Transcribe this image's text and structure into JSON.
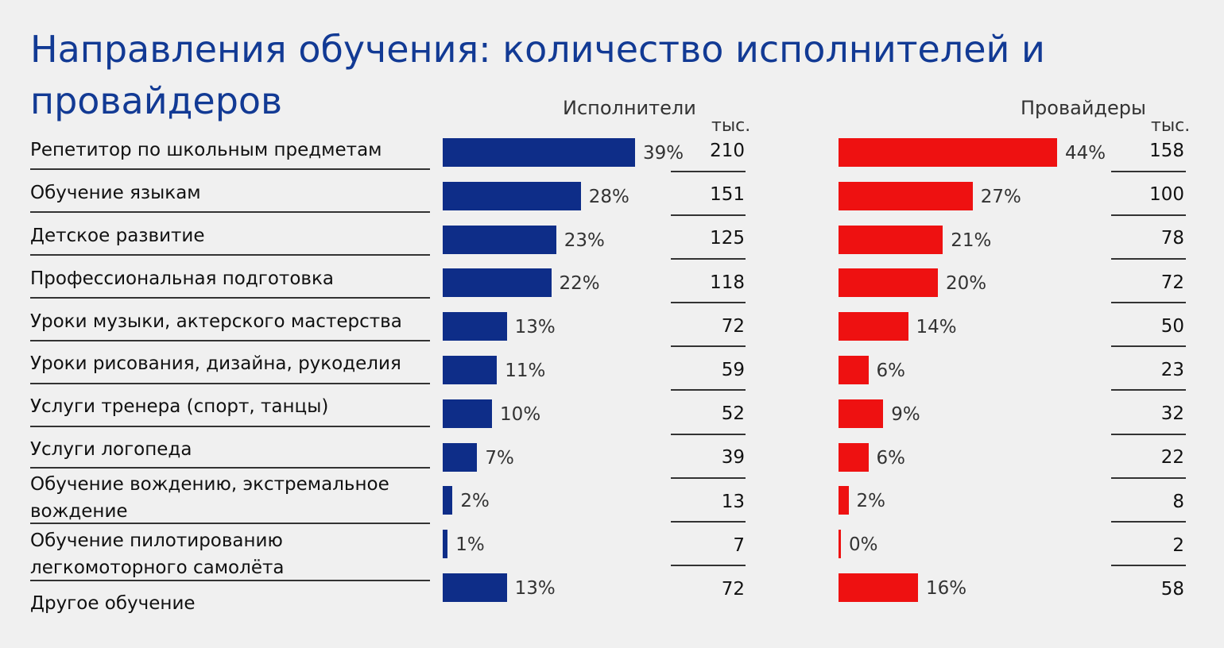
{
  "title": "Направления обучения: количество исполнителей и провайдеров",
  "chart_data": {
    "type": "bar",
    "orientation": "horizontal",
    "unit": "тыс.",
    "categories": [
      "Репетитор по школьным предметам",
      "Обучение языкам",
      "Детское развитие",
      "Профессиональная подготовка",
      "Уроки музыки, актерского мастерства",
      "Уроки рисования, дизайна, рукоделия",
      "Услуги тренера (спорт, танцы)",
      "Услуги логопеда",
      "Обучение вождению, экстремальное вождение",
      "Обучение пилотированию легкомоторного самолёта",
      "Другое обучение"
    ],
    "series": [
      {
        "name": "Исполнители",
        "color": "#0e2d88",
        "percent": [
          39,
          28,
          23,
          22,
          13,
          11,
          10,
          7,
          2,
          1,
          13
        ],
        "percent_labels": [
          "39%",
          "28%",
          "23%",
          "22%",
          "13%",
          "11%",
          "10%",
          "7%",
          "2%",
          "1%",
          "13%"
        ],
        "values": [
          210,
          151,
          125,
          118,
          72,
          59,
          52,
          39,
          13,
          7,
          72
        ]
      },
      {
        "name": "Провайдеры",
        "color": "#ee1111",
        "percent": [
          44,
          27,
          21,
          20,
          14,
          6,
          9,
          6,
          2,
          0,
          16
        ],
        "percent_labels": [
          "44%",
          "27%",
          "21%",
          "20%",
          "14%",
          "6%",
          "9%",
          "6%",
          "2%",
          "0%",
          "16%"
        ],
        "values": [
          158,
          100,
          78,
          72,
          50,
          23,
          32,
          22,
          8,
          2,
          58
        ]
      }
    ]
  }
}
